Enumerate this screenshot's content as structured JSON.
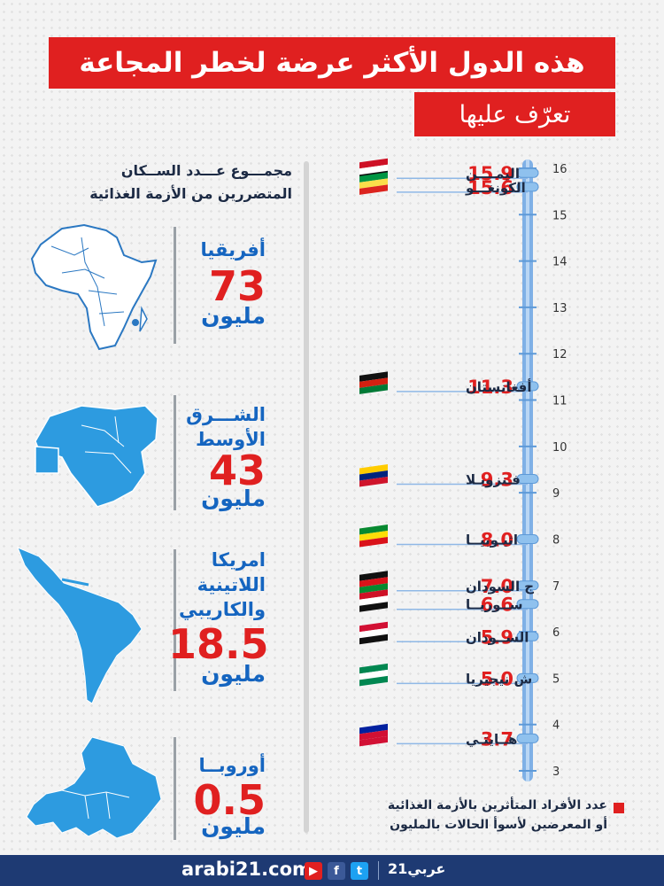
{
  "header": {
    "title": "هذه الدول الأكثر عرضة لخطر المجاعة",
    "subtitle": "تعرّف عليها"
  },
  "left_panel": {
    "heading_line1": "مجمـــوع عـــدد الســكان",
    "heading_line2": "المتضررين من الأزمة الغذائية",
    "regions": [
      {
        "name": "أفريقيا",
        "value": "73",
        "unit": "مليون",
        "map_icon": "africa-map-icon"
      },
      {
        "name": "الشـــرق الأوسط",
        "value": "43",
        "unit": "مليون",
        "map_icon": "middle-east-map-icon"
      },
      {
        "name": "امريكا اللاتينية والكاريبي",
        "value": "18.5",
        "unit": "مليون",
        "map_icon": "latin-america-map-icon"
      },
      {
        "name": "أوروبــا",
        "value": "0.5",
        "unit": "مليون",
        "map_icon": "europe-map-icon"
      }
    ]
  },
  "chart_data": {
    "type": "scatter",
    "title": "",
    "xlabel": "",
    "ylabel": "",
    "ylim": [
      3,
      16
    ],
    "ticks": [
      16,
      15,
      14,
      13,
      12,
      11,
      10,
      9,
      8,
      7,
      6,
      5,
      4,
      3
    ],
    "points": [
      {
        "country": "اليمــــن",
        "value": 15.9,
        "flag": "yemen-flag-icon"
      },
      {
        "country": "الكونغـــو",
        "value": 15.6,
        "flag": "congo-flag-icon"
      },
      {
        "country": "أفغانستان",
        "value": 11.3,
        "flag": "afghanistan-flag-icon"
      },
      {
        "country": "فـنزويـلا",
        "value": 9.3,
        "flag": "venezuela-flag-icon"
      },
      {
        "country": "اثيـوبيــا",
        "value": 8.0,
        "flag": "ethiopia-flag-icon"
      },
      {
        "country": "ج السودان",
        "value": 7.0,
        "flag": "south-sudan-flag-icon"
      },
      {
        "country": "ســوريــا",
        "value": 6.6,
        "flag": "syria-flag-icon"
      },
      {
        "country": "الســودان",
        "value": 5.9,
        "flag": "sudan-flag-icon"
      },
      {
        "country": "ش نيجيريا",
        "value": 5.0,
        "flag": "nigeria-flag-icon"
      },
      {
        "country": "هــايتـي",
        "value": 3.7,
        "flag": "haiti-flag-icon"
      }
    ],
    "legend": {
      "line1": "عدد الأفراد المتأثرين بالأزمة الغذائية",
      "line2": "أو المعرضين لأسوأ الحالات بالمليون"
    },
    "colors": {
      "value": "#e02020",
      "axis": "#7fb0e6",
      "country": "#1c2a44"
    }
  },
  "footer": {
    "site": "arabi21.com",
    "brand": "عربي21",
    "social": [
      "youtube-icon",
      "facebook-icon",
      "twitter-icon"
    ]
  }
}
